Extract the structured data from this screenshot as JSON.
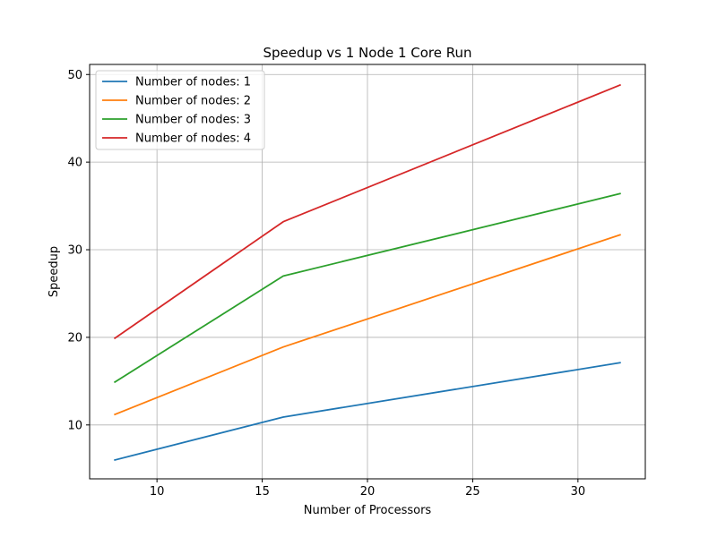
{
  "chart_data": {
    "type": "line",
    "title": "Speedup vs 1 Node 1 Core Run",
    "xlabel": "Number of Processors",
    "ylabel": "Speedup",
    "x": [
      8,
      16,
      32
    ],
    "series": [
      {
        "name": "Number of nodes: 1",
        "color": "#1f77b4",
        "values": [
          6.0,
          10.9,
          17.1
        ]
      },
      {
        "name": "Number of nodes: 2",
        "color": "#ff7f0e",
        "values": [
          11.2,
          18.9,
          31.7
        ]
      },
      {
        "name": "Number of nodes: 3",
        "color": "#2ca02c",
        "values": [
          14.9,
          27.0,
          36.4
        ]
      },
      {
        "name": "Number of nodes: 4",
        "color": "#d62728",
        "values": [
          19.9,
          33.2,
          48.8
        ]
      }
    ],
    "xlim": [
      6.8,
      33.2
    ],
    "ylim": [
      3.85,
      51.15
    ],
    "xticks": [
      10,
      15,
      20,
      25,
      30
    ],
    "yticks": [
      10,
      20,
      30,
      40,
      50
    ],
    "grid": true,
    "legend_position": "upper-left"
  }
}
